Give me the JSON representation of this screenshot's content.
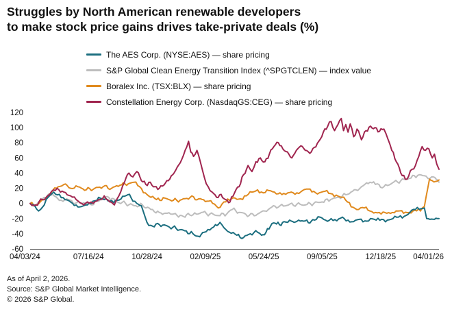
{
  "chart_data": {
    "type": "line",
    "title_line1": "Struggles by North American renewable developers",
    "title_line2": "to make stock price gains drives take-private deals (%)",
    "xlabel": "",
    "ylabel": "",
    "ylim": [
      -60,
      120
    ],
    "yticks": [
      "120",
      "100",
      "80",
      "60",
      "40",
      "20",
      "0",
      "-20",
      "-40",
      "-60"
    ],
    "ytick_values": [
      120,
      100,
      80,
      60,
      40,
      20,
      0,
      -20,
      -40,
      -60
    ],
    "xticks": [
      "04/03/24",
      "07/16/24",
      "10/28/24",
      "02/09/25",
      "05/24/25",
      "09/05/25",
      "12/18/25",
      "04/01/26"
    ],
    "xrange_days": [
      0,
      728
    ],
    "xtick_days": [
      0,
      104,
      208,
      312,
      416,
      520,
      624,
      728
    ],
    "legend": [
      {
        "label": "The AES Corp. (NYSE:AES) — share pricing",
        "color": "#1b6e7f"
      },
      {
        "label": "S&P Global Clean Energy Transition Index (^SPGTCLEN) — index value",
        "color": "#bdbdbd"
      },
      {
        "label": "Boralex Inc. (TSX:BLX) — share pricing",
        "color": "#e08a1e"
      },
      {
        "label": "Constellation Energy Corp. (NasdaqGS:CEG) — share pricing",
        "color": "#a0254f"
      }
    ],
    "series": [
      {
        "name": "S&P Global Clean Energy Transition Index (^SPGTCLEN) — index value",
        "color": "#bdbdbd",
        "points": [
          [
            0,
            0
          ],
          [
            10,
            -3
          ],
          [
            25,
            8
          ],
          [
            40,
            12
          ],
          [
            52,
            4
          ],
          [
            65,
            6
          ],
          [
            80,
            0
          ],
          [
            95,
            1
          ],
          [
            110,
            -2
          ],
          [
            125,
            5
          ],
          [
            140,
            8
          ],
          [
            155,
            2
          ],
          [
            170,
            0
          ],
          [
            185,
            -3
          ],
          [
            200,
            -2
          ],
          [
            215,
            -8
          ],
          [
            230,
            -12
          ],
          [
            250,
            -14
          ],
          [
            270,
            -16
          ],
          [
            290,
            -15
          ],
          [
            305,
            -12
          ],
          [
            320,
            -14
          ],
          [
            335,
            -16
          ],
          [
            350,
            -14
          ],
          [
            360,
            -8
          ],
          [
            375,
            -12
          ],
          [
            390,
            -16
          ],
          [
            405,
            -14
          ],
          [
            418,
            -10
          ],
          [
            430,
            -5
          ],
          [
            445,
            -3
          ],
          [
            460,
            -2
          ],
          [
            475,
            -1
          ],
          [
            490,
            -2
          ],
          [
            505,
            0
          ],
          [
            520,
            2
          ],
          [
            535,
            5
          ],
          [
            550,
            8
          ],
          [
            565,
            12
          ],
          [
            580,
            18
          ],
          [
            590,
            22
          ],
          [
            605,
            28
          ],
          [
            615,
            25
          ],
          [
            630,
            22
          ],
          [
            645,
            27
          ],
          [
            660,
            30
          ],
          [
            675,
            33
          ],
          [
            690,
            37
          ],
          [
            705,
            36
          ],
          [
            712,
            33
          ],
          [
            718,
            35
          ],
          [
            723,
            32
          ],
          [
            728,
            28
          ]
        ]
      },
      {
        "name": "Boralex Inc. (TSX:BLX) — share pricing",
        "color": "#e08a1e",
        "points": [
          [
            0,
            0
          ],
          [
            12,
            -2
          ],
          [
            25,
            5
          ],
          [
            38,
            15
          ],
          [
            50,
            22
          ],
          [
            60,
            25
          ],
          [
            72,
            20
          ],
          [
            85,
            22
          ],
          [
            100,
            18
          ],
          [
            115,
            20
          ],
          [
            130,
            22
          ],
          [
            145,
            20
          ],
          [
            160,
            24
          ],
          [
            175,
            26
          ],
          [
            185,
            28
          ],
          [
            195,
            22
          ],
          [
            205,
            14
          ],
          [
            215,
            8
          ],
          [
            225,
            5
          ],
          [
            240,
            7
          ],
          [
            255,
            4
          ],
          [
            270,
            5
          ],
          [
            285,
            8
          ],
          [
            300,
            6
          ],
          [
            315,
            3
          ],
          [
            325,
            0
          ],
          [
            335,
            -6
          ],
          [
            345,
            2
          ],
          [
            355,
            4
          ],
          [
            365,
            7
          ],
          [
            375,
            6
          ],
          [
            385,
            10
          ],
          [
            395,
            15
          ],
          [
            405,
            18
          ],
          [
            415,
            14
          ],
          [
            425,
            17
          ],
          [
            435,
            15
          ],
          [
            445,
            14
          ],
          [
            455,
            12
          ],
          [
            465,
            15
          ],
          [
            475,
            14
          ],
          [
            485,
            17
          ],
          [
            495,
            19
          ],
          [
            505,
            16
          ],
          [
            515,
            14
          ],
          [
            525,
            16
          ],
          [
            535,
            13
          ],
          [
            545,
            11
          ],
          [
            555,
            8
          ],
          [
            565,
            2
          ],
          [
            575,
            -5
          ],
          [
            585,
            -8
          ],
          [
            595,
            -6
          ],
          [
            605,
            -10
          ],
          [
            615,
            -12
          ],
          [
            625,
            -14
          ],
          [
            635,
            -13
          ],
          [
            645,
            -12
          ],
          [
            655,
            -10
          ],
          [
            665,
            -13
          ],
          [
            675,
            -12
          ],
          [
            685,
            -9
          ],
          [
            695,
            -10
          ],
          [
            702,
            -4
          ],
          [
            708,
            20
          ],
          [
            711,
            32
          ],
          [
            716,
            30
          ],
          [
            722,
            29
          ],
          [
            728,
            31
          ]
        ]
      },
      {
        "name": "The AES Corp. (NYSE:AES) — share pricing",
        "color": "#1b6e7f",
        "points": [
          [
            0,
            0
          ],
          [
            8,
            -3
          ],
          [
            15,
            -10
          ],
          [
            22,
            -5
          ],
          [
            32,
            8
          ],
          [
            42,
            15
          ],
          [
            52,
            12
          ],
          [
            62,
            5
          ],
          [
            72,
            2
          ],
          [
            82,
            -2
          ],
          [
            92,
            -4
          ],
          [
            102,
            -2
          ],
          [
            112,
            3
          ],
          [
            122,
            8
          ],
          [
            132,
            5
          ],
          [
            142,
            3
          ],
          [
            152,
            4
          ],
          [
            162,
            6
          ],
          [
            170,
            10
          ],
          [
            177,
            12
          ],
          [
            183,
            3
          ],
          [
            190,
            0
          ],
          [
            198,
            -3
          ],
          [
            208,
            -25
          ],
          [
            218,
            -30
          ],
          [
            230,
            -28
          ],
          [
            245,
            -30
          ],
          [
            260,
            -33
          ],
          [
            275,
            -36
          ],
          [
            290,
            -40
          ],
          [
            302,
            -44
          ],
          [
            310,
            -38
          ],
          [
            320,
            -35
          ],
          [
            330,
            -28
          ],
          [
            338,
            -25
          ],
          [
            345,
            -32
          ],
          [
            355,
            -38
          ],
          [
            368,
            -42
          ],
          [
            380,
            -45
          ],
          [
            392,
            -40
          ],
          [
            405,
            -38
          ],
          [
            412,
            -42
          ],
          [
            420,
            -38
          ],
          [
            428,
            -30
          ],
          [
            436,
            -26
          ],
          [
            444,
            -28
          ],
          [
            452,
            -24
          ],
          [
            462,
            -22
          ],
          [
            470,
            -25
          ],
          [
            478,
            -22
          ],
          [
            490,
            -23
          ],
          [
            498,
            -26
          ],
          [
            506,
            -22
          ],
          [
            516,
            -18
          ],
          [
            526,
            -22
          ],
          [
            536,
            -20
          ],
          [
            546,
            -23
          ],
          [
            556,
            -18
          ],
          [
            566,
            -22
          ],
          [
            576,
            -24
          ],
          [
            586,
            -21
          ],
          [
            596,
            -23
          ],
          [
            606,
            -20
          ],
          [
            616,
            -22
          ],
          [
            626,
            -21
          ],
          [
            636,
            -22
          ],
          [
            646,
            -20
          ],
          [
            656,
            -18
          ],
          [
            666,
            -17
          ],
          [
            676,
            -12
          ],
          [
            686,
            -8
          ],
          [
            696,
            -7
          ],
          [
            702,
            -6
          ],
          [
            706,
            -20
          ],
          [
            712,
            -21
          ],
          [
            720,
            -21
          ],
          [
            728,
            -20
          ]
        ]
      },
      {
        "name": "Constellation Energy Corp. (NasdaqGS:CEG) — share pricing",
        "color": "#a0254f",
        "points": [
          [
            0,
            0
          ],
          [
            10,
            -2
          ],
          [
            22,
            5
          ],
          [
            35,
            12
          ],
          [
            48,
            20
          ],
          [
            60,
            15
          ],
          [
            72,
            10
          ],
          [
            82,
            5
          ],
          [
            92,
            0
          ],
          [
            102,
            2
          ],
          [
            112,
            0
          ],
          [
            122,
            5
          ],
          [
            132,
            10
          ],
          [
            142,
            2
          ],
          [
            150,
            -2
          ],
          [
            158,
            10
          ],
          [
            168,
            28
          ],
          [
            176,
            40
          ],
          [
            183,
            35
          ],
          [
            190,
            42
          ],
          [
            198,
            30
          ],
          [
            206,
            25
          ],
          [
            214,
            28
          ],
          [
            222,
            22
          ],
          [
            230,
            20
          ],
          [
            238,
            24
          ],
          [
            246,
            30
          ],
          [
            254,
            38
          ],
          [
            262,
            48
          ],
          [
            270,
            58
          ],
          [
            276,
            70
          ],
          [
            282,
            82
          ],
          [
            286,
            68
          ],
          [
            291,
            62
          ],
          [
            297,
            70
          ],
          [
            303,
            55
          ],
          [
            310,
            35
          ],
          [
            317,
            22
          ],
          [
            324,
            15
          ],
          [
            332,
            8
          ],
          [
            340,
            12
          ],
          [
            348,
            5
          ],
          [
            356,
            2
          ],
          [
            364,
            14
          ],
          [
            372,
            22
          ],
          [
            380,
            38
          ],
          [
            388,
            50
          ],
          [
            395,
            42
          ],
          [
            402,
            55
          ],
          [
            410,
            60
          ],
          [
            418,
            55
          ],
          [
            426,
            65
          ],
          [
            434,
            75
          ],
          [
            442,
            80
          ],
          [
            450,
            72
          ],
          [
            458,
            68
          ],
          [
            466,
            60
          ],
          [
            474,
            70
          ],
          [
            482,
            76
          ],
          [
            490,
            70
          ],
          [
            498,
            66
          ],
          [
            506,
            74
          ],
          [
            514,
            82
          ],
          [
            522,
            94
          ],
          [
            530,
            102
          ],
          [
            536,
            108
          ],
          [
            542,
            96
          ],
          [
            548,
            104
          ],
          [
            554,
            112
          ],
          [
            558,
            96
          ],
          [
            562,
            104
          ],
          [
            566,
            94
          ],
          [
            570,
            105
          ],
          [
            576,
            88
          ],
          [
            582,
            98
          ],
          [
            590,
            84
          ],
          [
            598,
            96
          ],
          [
            606,
            102
          ],
          [
            614,
            100
          ],
          [
            622,
            95
          ],
          [
            630,
            98
          ],
          [
            637,
            85
          ],
          [
            644,
            70
          ],
          [
            652,
            55
          ],
          [
            660,
            40
          ],
          [
            668,
            32
          ],
          [
            674,
            36
          ],
          [
            680,
            45
          ],
          [
            686,
            50
          ],
          [
            692,
            62
          ],
          [
            698,
            75
          ],
          [
            704,
            70
          ],
          [
            710,
            72
          ],
          [
            716,
            60
          ],
          [
            720,
            65
          ],
          [
            724,
            52
          ],
          [
            728,
            45
          ]
        ]
      }
    ]
  },
  "footer": {
    "line1": "As of April 2, 2026.",
    "line2": "Source: S&P Global Market Intelligence.",
    "line3": "© 2026 S&P Global."
  }
}
